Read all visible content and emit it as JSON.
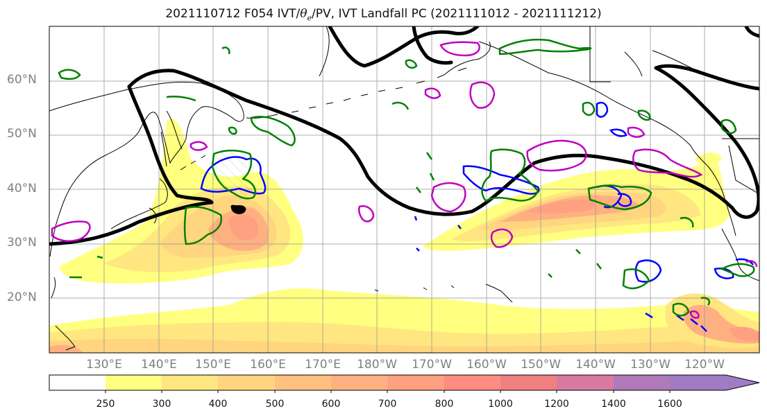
{
  "title": {
    "prefix": "2021110712 F054 IVT/",
    "theta": "θ",
    "theta_sub": "e",
    "suffix": "/PV, IVT Landfall PC (2021111012 - 2021111212)"
  },
  "lat_labels": [
    "60°N",
    "50°N",
    "40°N",
    "30°N",
    "20°N"
  ],
  "lon_labels": [
    "130°E",
    "140°E",
    "150°E",
    "160°E",
    "170°E",
    "180°W",
    "170°W",
    "160°W",
    "150°W",
    "140°W",
    "130°W",
    "120°W"
  ],
  "colorbar": {
    "levels": [
      "250",
      "300",
      "400",
      "500",
      "600",
      "700",
      "800",
      "1000",
      "1200",
      "1400",
      "1600"
    ],
    "colors": [
      "#ffffff",
      "#ffff80",
      "#ffe680",
      "#ffd580",
      "#ffc080",
      "#ffb080",
      "#ffa080",
      "#ff8c80",
      "#f08080",
      "#d87aa0",
      "#b07ab8",
      "#a07cc4",
      "#a07cc4"
    ]
  },
  "legend_colors": {
    "pv": "#008000",
    "theta_e": "#0000ff",
    "landfall": "#bf00bf",
    "contour": "#000000"
  }
}
